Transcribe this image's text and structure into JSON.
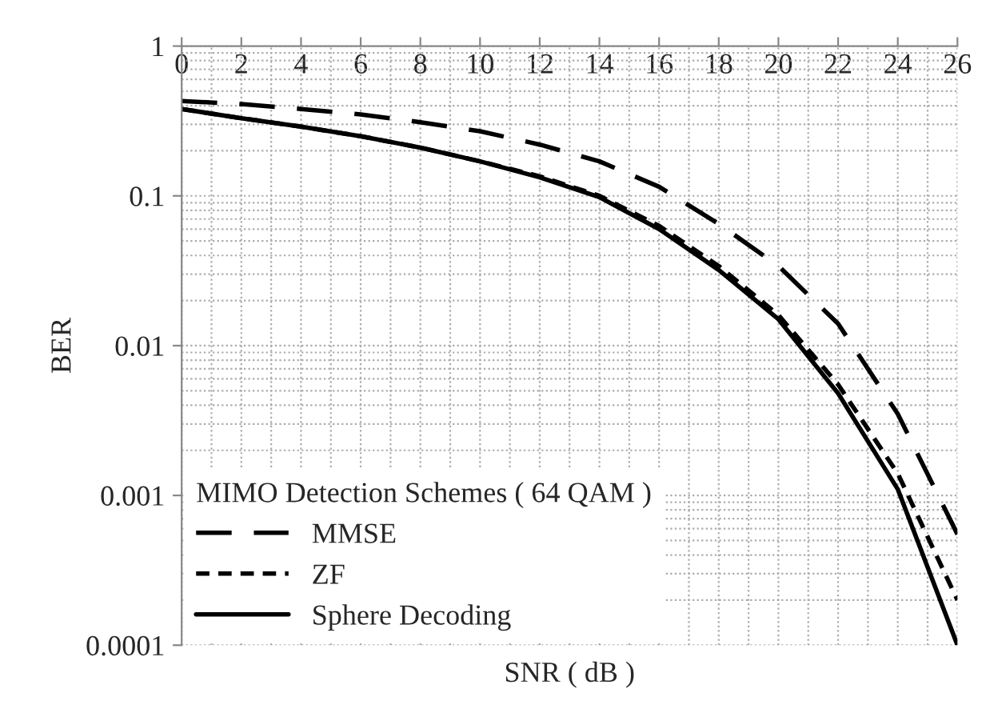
{
  "chart_data": {
    "type": "line",
    "xlabel": "SNR ( dB )",
    "ylabel": "BER",
    "legend_title": "MIMO Detection Schemes ( 64 QAM )",
    "x": [
      0,
      2,
      4,
      6,
      8,
      10,
      12,
      14,
      16,
      18,
      20,
      22,
      24,
      26
    ],
    "series": [
      {
        "name": "MMSE",
        "color": "#000000",
        "line_style": "dashed",
        "values": [
          0.43,
          0.41,
          0.38,
          0.35,
          0.31,
          0.27,
          0.22,
          0.17,
          0.115,
          0.065,
          0.034,
          0.014,
          0.0035,
          0.00055
        ]
      },
      {
        "name": "ZF",
        "color": "#000000",
        "line_style": "dotted",
        "values": [
          0.38,
          0.33,
          0.29,
          0.25,
          0.21,
          0.17,
          0.135,
          0.1,
          0.063,
          0.034,
          0.016,
          0.0055,
          0.0014,
          0.0002
        ]
      },
      {
        "name": "Sphere Decoding",
        "color": "#000000",
        "line_style": "solid",
        "values": [
          0.38,
          0.33,
          0.29,
          0.25,
          0.21,
          0.17,
          0.133,
          0.098,
          0.06,
          0.032,
          0.015,
          0.0048,
          0.0011,
          0.0001
        ]
      }
    ],
    "log": "y",
    "xlim": [
      0,
      26
    ],
    "xticks": [
      0,
      2,
      4,
      6,
      8,
      10,
      12,
      14,
      16,
      18,
      20,
      22,
      24,
      26
    ],
    "ylim": [
      0.0001,
      1
    ],
    "yticks": [
      {
        "value": 0.0001,
        "label": "0.0001"
      },
      {
        "value": 0.001,
        "label": "0.001"
      },
      {
        "value": 0.01,
        "label": "0.01"
      },
      {
        "value": 0.1,
        "label": "0.1"
      },
      {
        "value": 1,
        "label": "1"
      }
    ],
    "grid": true,
    "legend": "bottom left"
  }
}
